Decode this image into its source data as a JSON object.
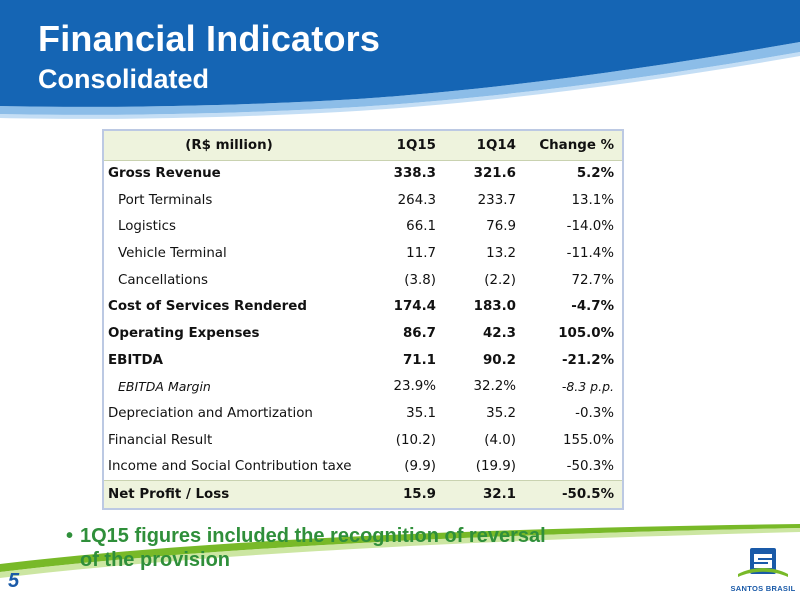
{
  "header": {
    "title": "Financial Indicators",
    "subtitle": "Consolidated"
  },
  "table": {
    "columns": [
      "(R$ million)",
      "1Q15",
      "1Q14",
      "Change %"
    ],
    "rows": [
      {
        "label": "Gross Revenue",
        "q15": "338.3",
        "q14": "321.6",
        "change": "5.2%",
        "style": "bold"
      },
      {
        "label": "Port Terminals",
        "q15": "264.3",
        "q14": "233.7",
        "change": "13.1%",
        "style": "indent"
      },
      {
        "label": "Logistics",
        "q15": "66.1",
        "q14": "76.9",
        "change": "-14.0%",
        "style": "indent"
      },
      {
        "label": "Vehicle Terminal",
        "q15": "11.7",
        "q14": "13.2",
        "change": "-11.4%",
        "style": "indent"
      },
      {
        "label": "Cancellations",
        "q15": "(3.8)",
        "q14": "(2.2)",
        "change": "72.7%",
        "style": "indent"
      },
      {
        "label": "Cost of Services Rendered",
        "q15": "174.4",
        "q14": "183.0",
        "change": "-4.7%",
        "style": "bold"
      },
      {
        "label": "Operating Expenses",
        "q15": "86.7",
        "q14": "42.3",
        "change": "105.0%",
        "style": "bold"
      },
      {
        "label": "EBITDA",
        "q15": "71.1",
        "q14": "90.2",
        "change": "-21.2%",
        "style": "bold"
      },
      {
        "label": "EBITDA Margin",
        "q15": "23.9%",
        "q14": "32.2%",
        "change": "-8.3 p.p.",
        "style": "italic"
      },
      {
        "label": "Depreciation and Amortization",
        "q15": "35.1",
        "q14": "35.2",
        "change": "-0.3%",
        "style": "normal"
      },
      {
        "label": "Financial Result",
        "q15": "(10.2)",
        "q14": "(4.0)",
        "change": "155.0%",
        "style": "normal"
      },
      {
        "label": "Income and Social Contribution taxe",
        "q15": "(9.9)",
        "q14": "(19.9)",
        "change": "-50.3%",
        "style": "normal"
      },
      {
        "label": "Net Profit / Loss",
        "q15": "15.9",
        "q14": "32.1",
        "change": "-50.5%",
        "style": "total"
      }
    ]
  },
  "bullet": {
    "line1": "1Q15 figures included the recognition of reversal",
    "line2": "of the provision"
  },
  "footer": {
    "page_number": "5",
    "logo_text": "SANTOS BRASIL",
    "logo_icon": "santos-brasil-s-logo-icon"
  },
  "colors": {
    "header_blue": "#1565b4",
    "table_border": "#bcc9e3",
    "table_header_bg": "#eef3dd",
    "bullet_green": "#2f8f3a",
    "footer_green": "#78b928"
  }
}
